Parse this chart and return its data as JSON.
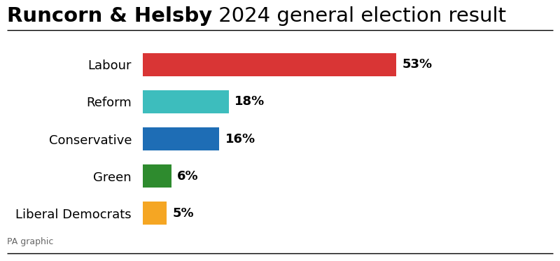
{
  "title_bold": "Runcorn & Helsby",
  "title_normal": " 2024 general election result",
  "parties": [
    "Labour",
    "Reform",
    "Conservative",
    "Green",
    "Liberal Democrats"
  ],
  "values": [
    53,
    18,
    16,
    6,
    5
  ],
  "colors": [
    "#d93535",
    "#3dbdbd",
    "#1e6db5",
    "#2e8b2e",
    "#f5a623"
  ],
  "labels": [
    "53%",
    "18%",
    "16%",
    "6%",
    "5%"
  ],
  "footer": "PA graphic",
  "bg_color": "#ffffff",
  "bar_height": 0.62,
  "title_fontsize": 21,
  "label_fontsize": 13,
  "party_fontsize": 13,
  "footer_fontsize": 9,
  "xlim": [
    0,
    72
  ]
}
